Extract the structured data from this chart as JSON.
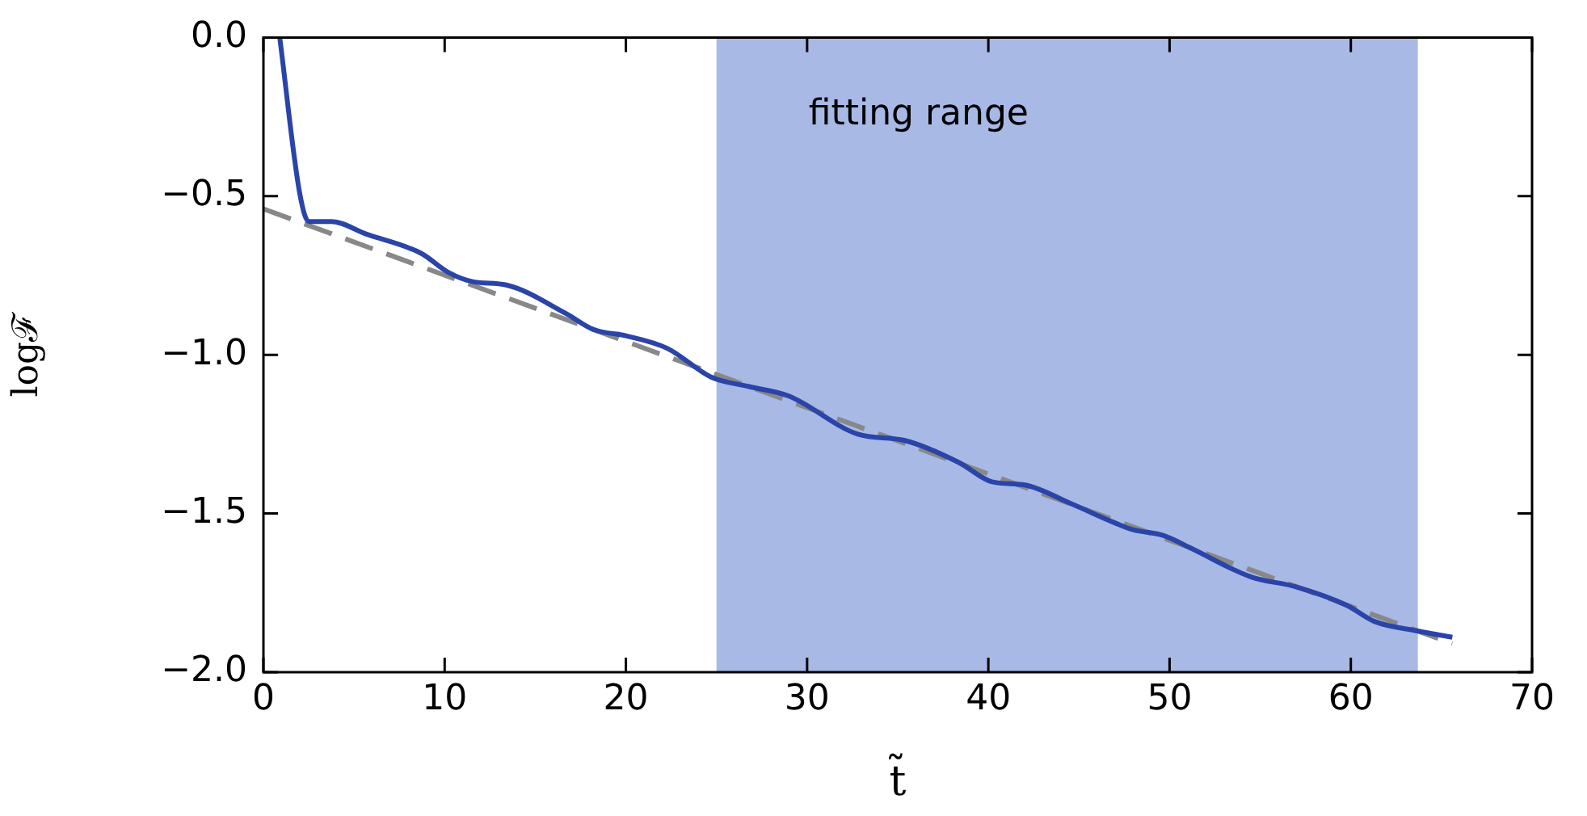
{
  "chart_data": {
    "type": "line",
    "xlabel": "t̃",
    "ylabel": "logℱ",
    "series": [
      {
        "color": "#2a44a8",
        "line_style": "solid",
        "x": [
          0.9,
          2.0,
          2.5,
          3.75,
          5.7,
          8.7,
          10.2,
          11.6,
          13.4,
          16.7,
          18.2,
          20,
          22.3,
          24.7,
          26.8,
          29,
          32.8,
          35.4,
          38.4,
          40.2,
          42,
          44.6,
          47,
          47.9,
          49.7,
          51.2,
          54.5,
          56.9,
          59.8,
          61.3,
          63.7,
          65.6
        ],
        "values": [
          0,
          -0.49,
          -0.58,
          -0.58,
          -0.62,
          -0.68,
          -0.74,
          -0.77,
          -0.78,
          -0.87,
          -0.92,
          -0.94,
          -0.98,
          -1.07,
          -1.1,
          -1.13,
          -1.25,
          -1.27,
          -1.34,
          -1.4,
          -1.41,
          -1.47,
          -1.53,
          -1.55,
          -1.57,
          -1.61,
          -1.7,
          -1.73,
          -1.79,
          -1.84,
          -1.87,
          -1.89
        ]
      },
      {
        "color": "#888888",
        "line_style": "dashed",
        "x": [
          0,
          65.6
        ],
        "values": [
          -0.54,
          -1.91
        ]
      }
    ],
    "bands": [
      {
        "axis": "x",
        "from": 25,
        "to": 63.7,
        "label": "fitting range",
        "color": "#a8b9e6"
      }
    ],
    "xlim": [
      0,
      70
    ],
    "xticks": [
      0,
      10,
      20,
      30,
      40,
      50,
      60,
      70
    ],
    "ylim": [
      -2,
      0
    ],
    "yticks": [
      {
        "value": -2,
        "label": "−2.0"
      },
      {
        "value": -1.5,
        "label": "−1.5"
      },
      {
        "value": -1,
        "label": "−1.0"
      },
      {
        "value": -0.5,
        "label": "−0.5"
      },
      {
        "value": 0,
        "label": "0.0"
      }
    ],
    "legend": false,
    "marker": "none"
  }
}
